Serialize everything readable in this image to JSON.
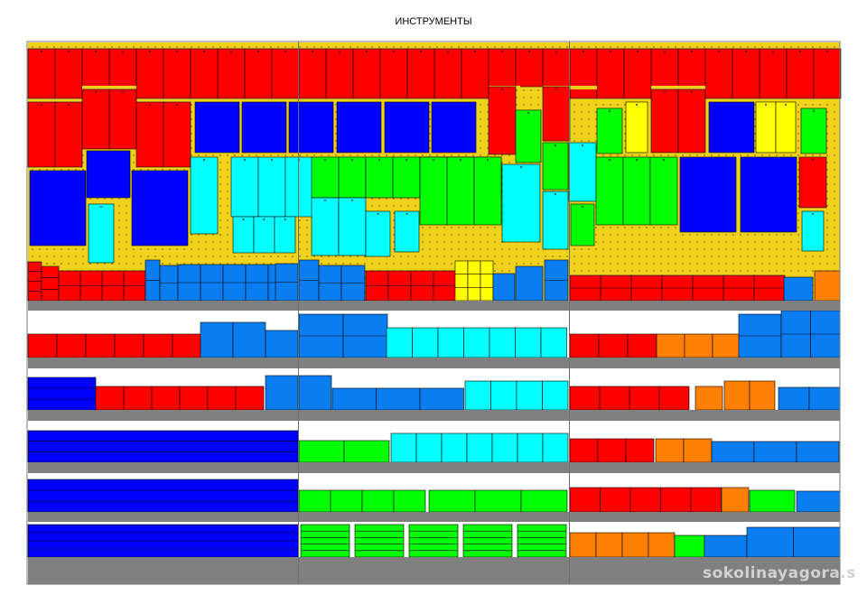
{
  "title": "ИНСТРУМЕНТЫ",
  "watermark": "sokolinayagora.s",
  "colors": {
    "pegboard": "#f0d21c",
    "shelf": "#808080",
    "divider": "#6e6e6e",
    "red": "#ff0000",
    "blue": "#0000ff",
    "sky": "#0a7ef0",
    "cyan": "#00ffff",
    "green": "#00ff00",
    "yellow": "#ffff00",
    "orange": "#ff8000"
  },
  "sections": [
    "left-section",
    "middle-section",
    "right-section"
  ],
  "shelves": 6
}
